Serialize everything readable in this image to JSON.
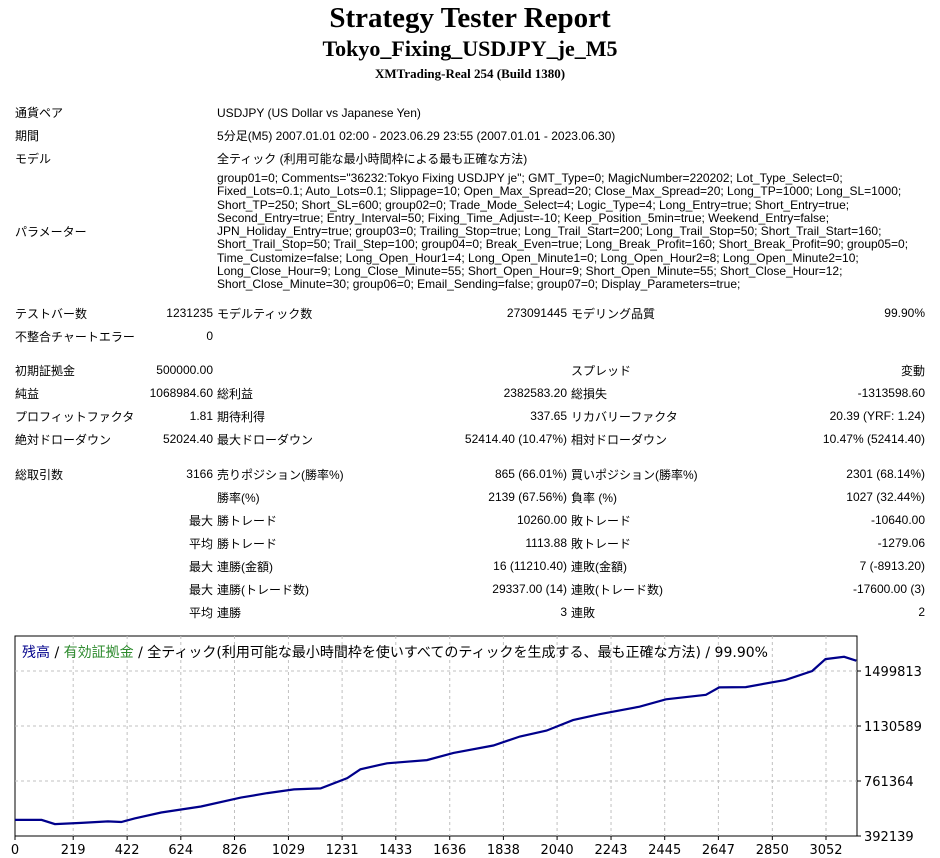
{
  "header": {
    "title": "Strategy Tester Report",
    "expert": "Tokyo_Fixing_USDJPY_je_M5",
    "server": "XMTrading-Real 254 (Build 1380)"
  },
  "info": {
    "symbol_label": "通貨ペア",
    "symbol": "USDJPY (US Dollar vs Japanese Yen)",
    "period_label": "期間",
    "period": "5分足(M5) 2007.01.01 02:00 - 2023.06.29 23:55 (2007.01.01 - 2023.06.30)",
    "model_label": "モデル",
    "model": "全ティック (利用可能な最小時間枠による最も正確な方法)",
    "params_label": "パラメーター",
    "params": "group01=0; Comments=\"36232:Tokyo Fixing USDJPY je\"; GMT_Type=0; MagicNumber=220202; Lot_Type_Select=0; Fixed_Lots=0.1; Auto_Lots=0.1; Slippage=10; Open_Max_Spread=20; Close_Max_Spread=20; Long_TP=1000; Long_SL=1000; Short_TP=250; Short_SL=600; group02=0; Trade_Mode_Select=4; Logic_Type=4; Long_Entry=true; Short_Entry=true; Second_Entry=true; Entry_Interval=50; Fixing_Time_Adjust=-10; Keep_Position_5min=true; Weekend_Entry=false; JPN_Holiday_Entry=true; group03=0; Trailing_Stop=true; Long_Trail_Start=200; Long_Trail_Stop=50; Short_Trail_Start=160; Short_Trail_Stop=50; Trail_Step=100; group04=0; Break_Even=true; Long_Break_Profit=160; Short_Break_Profit=90; group05=0; Time_Customize=false; Long_Open_Hour1=4; Long_Open_Minute1=0; Long_Open_Hour2=8; Long_Open_Minute2=10; Long_Close_Hour=9; Long_Close_Minute=55; Short_Open_Hour=9; Short_Open_Minute=55; Short_Close_Hour=12; Short_Close_Minute=30; group06=0; Email_Sending=false; group07=0; Display_Parameters=true;"
  },
  "stats1": [
    [
      "テストバー数",
      "1231235",
      "モデルティック数",
      "273091445",
      "モデリング品質",
      "99.90%"
    ],
    [
      "不整合チャートエラー",
      "0",
      "",
      "",
      "",
      ""
    ]
  ],
  "stats2": [
    [
      "初期証拠金",
      "500000.00",
      "",
      "",
      "スプレッド",
      "変動"
    ],
    [
      "純益",
      "1068984.60",
      "総利益",
      "2382583.20",
      "総損失",
      "-1313598.60"
    ],
    [
      "プロフィットファクタ",
      "1.81",
      "期待利得",
      "337.65",
      "リカバリーファクタ",
      "20.39 (YRF: 1.24)"
    ],
    [
      "絶対ドローダウン",
      "52024.40",
      "最大ドローダウン",
      "52414.40 (10.47%)",
      "相対ドローダウン",
      "10.47% (52414.40)"
    ]
  ],
  "stats3": [
    [
      "総取引数",
      "3166",
      "売りポジション(勝率%)",
      "865 (66.01%)",
      "買いポジション(勝率%)",
      "2301 (68.14%)"
    ],
    [
      "",
      "",
      "勝率(%)",
      "2139 (67.56%)",
      "負率 (%)",
      "1027 (32.44%)"
    ],
    [
      "",
      "最大",
      "勝トレード",
      "10260.00",
      "敗トレード",
      "-10640.00"
    ],
    [
      "",
      "平均",
      "勝トレード",
      "1113.88",
      "敗トレード",
      "-1279.06"
    ],
    [
      "",
      "最大",
      "連勝(金額)",
      "16 (11210.40)",
      "連敗(金額)",
      "7 (-8913.20)"
    ],
    [
      "",
      "最大",
      "連勝(トレード数)",
      "29337.00 (14)",
      "連敗(トレード数)",
      "-17600.00 (3)"
    ],
    [
      "",
      "平均",
      "連勝",
      "3",
      "連敗",
      "2"
    ]
  ],
  "chart_data": {
    "type": "line",
    "legend": {
      "balance": "残高",
      "sep1": " / ",
      "equity": "有効証拠金",
      "rest": " / 全ティック(利用可能な最小時間枠を使いすべてのティックを生成する、最も正確な方法) / 99.90%"
    },
    "colors": {
      "balance": "#00008b",
      "equity": "#2e8b2e",
      "grid": "#c0c0c0"
    },
    "xticks": [
      0,
      219,
      422,
      624,
      826,
      1029,
      1231,
      1433,
      1636,
      1838,
      2040,
      2243,
      2445,
      2647,
      2850,
      3052
    ],
    "yticks": [
      392139,
      761364,
      1130589,
      1499813
    ],
    "xlim": [
      0,
      3166
    ],
    "ylim": [
      392139,
      1676000
    ],
    "series": [
      {
        "name": "残高",
        "x": [
          0,
          100,
          150,
          250,
          350,
          400,
          450,
          550,
          700,
          850,
          950,
          1050,
          1150,
          1250,
          1300,
          1400,
          1550,
          1650,
          1800,
          1900,
          2000,
          2100,
          2200,
          2350,
          2450,
          2600,
          2650,
          2750,
          2900,
          3000,
          3050,
          3120,
          3166
        ],
        "y": [
          500000,
          500000,
          472000,
          480000,
          490000,
          486000,
          510000,
          550000,
          590000,
          650000,
          680000,
          705000,
          712000,
          780000,
          840000,
          880000,
          902000,
          950000,
          1000000,
          1060000,
          1100000,
          1170000,
          1210000,
          1260000,
          1310000,
          1340000,
          1390000,
          1392000,
          1440000,
          1500000,
          1580000,
          1595000,
          1568984
        ]
      }
    ]
  }
}
